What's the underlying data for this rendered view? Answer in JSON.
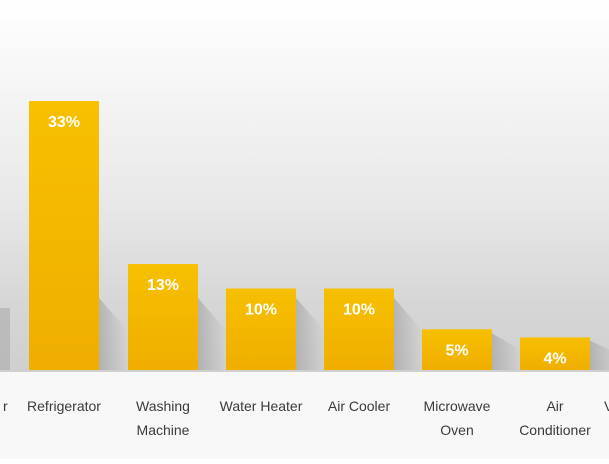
{
  "chart_data": {
    "type": "bar",
    "categories": [
      [
        "r"
      ],
      [
        "Refrigerator"
      ],
      [
        "Washing",
        "Machine"
      ],
      [
        "Water Heater"
      ],
      [
        "Air Cooler"
      ],
      [
        "Microwave",
        "Oven"
      ],
      [
        "Air",
        "Conditioner"
      ],
      [
        "V"
      ]
    ],
    "values": [
      null,
      33,
      13,
      10,
      10,
      5,
      4,
      null
    ],
    "labels": [
      "",
      "33%",
      "13%",
      "10%",
      "10%",
      "5%",
      "4%",
      ""
    ],
    "unit": "%",
    "ylim": [
      0,
      35
    ],
    "grid": false,
    "legend": "none",
    "colors": {
      "bar_top": "#F7C000",
      "bar_bottom": "#F0AE00",
      "bg_top": "#FFFFFF",
      "bg_mid": "#DCDCDC",
      "floor": "#F7F7F7"
    }
  }
}
